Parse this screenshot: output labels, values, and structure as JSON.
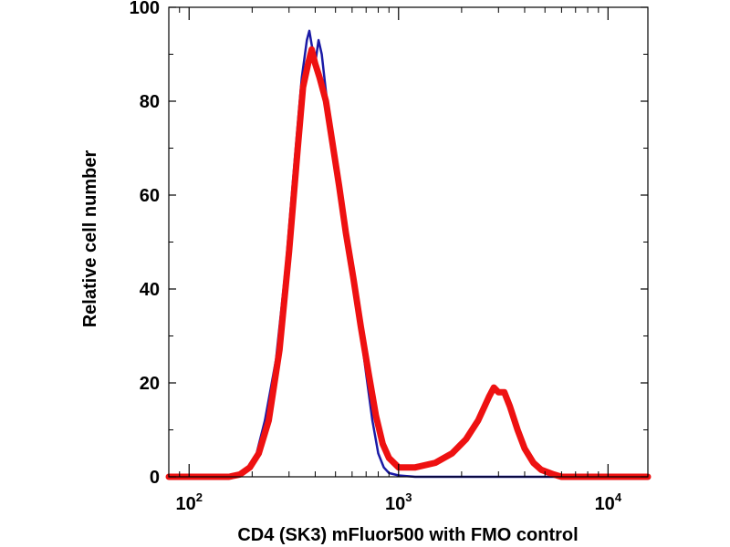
{
  "chart_data": {
    "type": "line",
    "title": "",
    "xlabel": "CD4 (SK3) mFluor500 with FMO control",
    "ylabel": "Relative cell number",
    "x_scale": "log",
    "xlim": [
      80,
      15500
    ],
    "ylim": [
      0,
      100
    ],
    "x_ticks": [
      {
        "value": 100,
        "base": "10",
        "exp": "2"
      },
      {
        "value": 1000,
        "base": "10",
        "exp": "3"
      },
      {
        "value": 10000,
        "base": "10",
        "exp": "4"
      }
    ],
    "y_ticks": [
      0,
      20,
      40,
      60,
      80,
      100
    ],
    "grid": false,
    "legend": "none",
    "series": [
      {
        "color": "#1a1aa6",
        "points": [
          [
            80,
            0
          ],
          [
            150,
            0
          ],
          [
            170,
            0.5
          ],
          [
            190,
            2
          ],
          [
            210,
            5
          ],
          [
            230,
            12
          ],
          [
            260,
            25
          ],
          [
            290,
            45
          ],
          [
            320,
            68
          ],
          [
            345,
            85
          ],
          [
            365,
            93
          ],
          [
            375,
            95
          ],
          [
            385,
            92
          ],
          [
            400,
            88
          ],
          [
            415,
            93
          ],
          [
            430,
            90
          ],
          [
            450,
            82
          ],
          [
            480,
            72
          ],
          [
            520,
            62
          ],
          [
            560,
            52
          ],
          [
            600,
            42
          ],
          [
            650,
            33
          ],
          [
            700,
            22
          ],
          [
            750,
            12
          ],
          [
            800,
            5
          ],
          [
            850,
            2
          ],
          [
            900,
            0.8
          ],
          [
            1000,
            0.3
          ],
          [
            1200,
            0
          ],
          [
            15500,
            0
          ]
        ]
      },
      {
        "color": "#ee1111",
        "points": [
          [
            80,
            0
          ],
          [
            155,
            0
          ],
          [
            175,
            0.5
          ],
          [
            195,
            2
          ],
          [
            215,
            5
          ],
          [
            240,
            12
          ],
          [
            270,
            27
          ],
          [
            300,
            48
          ],
          [
            330,
            70
          ],
          [
            350,
            83
          ],
          [
            370,
            88
          ],
          [
            385,
            91
          ],
          [
            400,
            88
          ],
          [
            420,
            85
          ],
          [
            450,
            80
          ],
          [
            480,
            72
          ],
          [
            520,
            62
          ],
          [
            560,
            52
          ],
          [
            610,
            42
          ],
          [
            660,
            32
          ],
          [
            720,
            22
          ],
          [
            780,
            13
          ],
          [
            840,
            7
          ],
          [
            900,
            4
          ],
          [
            1000,
            2
          ],
          [
            1200,
            2
          ],
          [
            1500,
            3
          ],
          [
            1800,
            5
          ],
          [
            2100,
            8
          ],
          [
            2400,
            12
          ],
          [
            2700,
            17
          ],
          [
            2850,
            19
          ],
          [
            3000,
            18
          ],
          [
            3200,
            18
          ],
          [
            3400,
            15
          ],
          [
            3700,
            10
          ],
          [
            4000,
            6
          ],
          [
            4400,
            3
          ],
          [
            4800,
            1.5
          ],
          [
            5500,
            0.5
          ],
          [
            6000,
            0
          ],
          [
            15500,
            0
          ]
        ]
      }
    ]
  }
}
